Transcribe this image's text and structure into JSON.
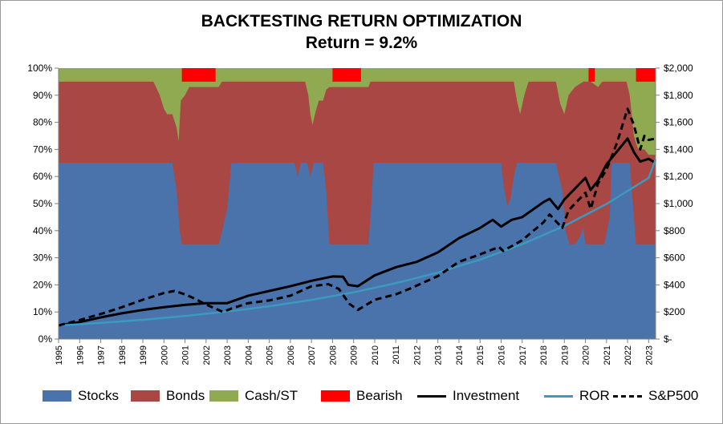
{
  "chart_data": {
    "type": "area",
    "title": "BACKTESTING RETURN OPTIMIZATION",
    "subtitle": "Return = 9.2%",
    "x": {
      "start": 1995.0,
      "end": 2023.33,
      "tick_labels": [
        "1995",
        "1996",
        "1997",
        "1998",
        "1999",
        "2000",
        "2001",
        "2002",
        "2003",
        "2004",
        "2005",
        "2006",
        "2007",
        "2008",
        "2009",
        "2010",
        "2011",
        "2012",
        "2013",
        "2014",
        "2015",
        "2016",
        "2017",
        "2018",
        "2019",
        "2020",
        "2021",
        "2022",
        "2023"
      ]
    },
    "y_left": {
      "range": [
        0,
        100
      ],
      "tick_labels": [
        "0%",
        "10%",
        "20%",
        "30%",
        "40%",
        "50%",
        "60%",
        "70%",
        "80%",
        "90%",
        "100%"
      ]
    },
    "y_right": {
      "range": [
        0,
        2000
      ],
      "tick_labels": [
        "$-",
        "$200",
        "$400",
        "$600",
        "$800",
        "$1,000",
        "$1,200",
        "$1,400",
        "$1,600",
        "$1,800",
        "$2,000"
      ]
    },
    "allocation_series": [
      {
        "name": "Stocks",
        "color": "#4a72ab",
        "points": [
          [
            1995,
            65
          ],
          [
            2000.4,
            65
          ],
          [
            2000.6,
            55
          ],
          [
            2000.75,
            40
          ],
          [
            2000.85,
            35
          ],
          [
            2002.6,
            35
          ],
          [
            2002.7,
            38
          ],
          [
            2003.0,
            48
          ],
          [
            2003.2,
            65
          ],
          [
            2006.2,
            65
          ],
          [
            2006.35,
            60
          ],
          [
            2006.5,
            65
          ],
          [
            2006.8,
            65
          ],
          [
            2006.95,
            60
          ],
          [
            2007.1,
            65
          ],
          [
            2007.55,
            65
          ],
          [
            2007.7,
            55
          ],
          [
            2007.85,
            35
          ],
          [
            2009.7,
            35
          ],
          [
            2009.8,
            45
          ],
          [
            2009.95,
            65
          ],
          [
            2016.0,
            65
          ],
          [
            2016.15,
            55
          ],
          [
            2016.3,
            49
          ],
          [
            2016.45,
            52
          ],
          [
            2016.6,
            60
          ],
          [
            2016.75,
            65
          ],
          [
            2018.6,
            65
          ],
          [
            2018.9,
            55
          ],
          [
            2019.05,
            40
          ],
          [
            2019.25,
            35
          ],
          [
            2019.5,
            35
          ],
          [
            2019.75,
            38
          ],
          [
            2019.9,
            41
          ],
          [
            2020.0,
            35
          ],
          [
            2020.25,
            35
          ],
          [
            2020.6,
            35
          ],
          [
            2020.9,
            35
          ],
          [
            2021.15,
            45
          ],
          [
            2021.25,
            65
          ],
          [
            2022.1,
            65
          ],
          [
            2022.25,
            50
          ],
          [
            2022.4,
            35
          ],
          [
            2023.33,
            35
          ]
        ]
      },
      {
        "name": "Bonds",
        "color": "#a94744",
        "points": [
          [
            1995,
            95
          ],
          [
            1999.5,
            95
          ],
          [
            1999.8,
            90
          ],
          [
            2000.0,
            85
          ],
          [
            2000.15,
            83
          ],
          [
            2000.4,
            83
          ],
          [
            2000.6,
            78
          ],
          [
            2000.7,
            73
          ],
          [
            2000.8,
            88
          ],
          [
            2001.0,
            90
          ],
          [
            2001.2,
            93
          ],
          [
            2002.6,
            93
          ],
          [
            2002.75,
            95
          ],
          [
            2006.7,
            95
          ],
          [
            2006.85,
            90
          ],
          [
            2006.95,
            83
          ],
          [
            2007.05,
            79
          ],
          [
            2007.2,
            84
          ],
          [
            2007.35,
            88
          ],
          [
            2007.55,
            88
          ],
          [
            2007.7,
            92
          ],
          [
            2007.85,
            93
          ],
          [
            2009.7,
            93
          ],
          [
            2009.8,
            95
          ],
          [
            2016.6,
            95
          ],
          [
            2016.75,
            88
          ],
          [
            2016.9,
            83
          ],
          [
            2017.1,
            90
          ],
          [
            2017.3,
            95
          ],
          [
            2018.6,
            95
          ],
          [
            2018.8,
            87
          ],
          [
            2019.0,
            83
          ],
          [
            2019.2,
            90
          ],
          [
            2019.5,
            93
          ],
          [
            2019.9,
            95
          ],
          [
            2020.25,
            95
          ],
          [
            2020.6,
            93
          ],
          [
            2020.8,
            95
          ],
          [
            2021.95,
            95
          ],
          [
            2022.1,
            90
          ],
          [
            2022.3,
            75
          ],
          [
            2022.5,
            70
          ],
          [
            2022.8,
            70
          ],
          [
            2023.0,
            68
          ],
          [
            2023.33,
            68
          ]
        ]
      },
      {
        "name": "Cash/ST",
        "color": "#8faa51",
        "points": [
          [
            1995,
            100
          ],
          [
            2023.33,
            100
          ]
        ]
      }
    ],
    "bearish_periods": [
      [
        2000.85,
        2002.45
      ],
      [
        2008.0,
        2009.35
      ],
      [
        2020.15,
        2020.45
      ],
      [
        2022.4,
        2023.33
      ]
    ],
    "bearish_color": "#ff0000",
    "line_series": [
      {
        "name": "Investment",
        "color": "#000000",
        "style": "solid",
        "points": [
          [
            1995,
            100
          ],
          [
            1996,
            125
          ],
          [
            1997,
            160
          ],
          [
            1998,
            190
          ],
          [
            1999,
            215
          ],
          [
            2000,
            235
          ],
          [
            2001,
            252
          ],
          [
            2002,
            265
          ],
          [
            2003,
            265
          ],
          [
            2004,
            320
          ],
          [
            2005,
            355
          ],
          [
            2006,
            390
          ],
          [
            2007,
            430
          ],
          [
            2008,
            462
          ],
          [
            2008.5,
            460
          ],
          [
            2008.75,
            400
          ],
          [
            2009.2,
            390
          ],
          [
            2010,
            470
          ],
          [
            2011,
            530
          ],
          [
            2012,
            570
          ],
          [
            2013,
            640
          ],
          [
            2014,
            745
          ],
          [
            2015,
            820
          ],
          [
            2015.6,
            880
          ],
          [
            2016,
            830
          ],
          [
            2016.5,
            880
          ],
          [
            2017,
            900
          ],
          [
            2018,
            1010
          ],
          [
            2018.3,
            1035
          ],
          [
            2018.7,
            960
          ],
          [
            2019,
            1030
          ],
          [
            2020,
            1190
          ],
          [
            2020.25,
            1100
          ],
          [
            2020.6,
            1170
          ],
          [
            2021,
            1290
          ],
          [
            2022,
            1480
          ],
          [
            2022.3,
            1380
          ],
          [
            2022.6,
            1310
          ],
          [
            2023,
            1330
          ],
          [
            2023.33,
            1300
          ]
        ]
      },
      {
        "name": "ROR",
        "color": "#3b9abf",
        "style": "solid",
        "points": [
          [
            1995,
            100
          ],
          [
            1997,
            119
          ],
          [
            1999,
            142
          ],
          [
            2001,
            170
          ],
          [
            2003,
            203
          ],
          [
            2005,
            242
          ],
          [
            2007,
            289
          ],
          [
            2009,
            345
          ],
          [
            2011,
            412
          ],
          [
            2013,
            491
          ],
          [
            2015,
            586
          ],
          [
            2017,
            700
          ],
          [
            2019,
            835
          ],
          [
            2021,
            997
          ],
          [
            2023,
            1190
          ],
          [
            2023.33,
            1325
          ]
        ]
      },
      {
        "name": "S&P500",
        "color": "#000000",
        "style": "dashed",
        "points": [
          [
            1995,
            100
          ],
          [
            1996,
            140
          ],
          [
            1997,
            185
          ],
          [
            1998,
            235
          ],
          [
            1999,
            290
          ],
          [
            2000,
            340
          ],
          [
            2000.5,
            355
          ],
          [
            2001,
            330
          ],
          [
            2001.5,
            295
          ],
          [
            2002,
            255
          ],
          [
            2002.8,
            200
          ],
          [
            2003.2,
            225
          ],
          [
            2004,
            265
          ],
          [
            2005,
            285
          ],
          [
            2006,
            320
          ],
          [
            2007,
            390
          ],
          [
            2007.8,
            405
          ],
          [
            2008.3,
            370
          ],
          [
            2008.8,
            260
          ],
          [
            2009.2,
            215
          ],
          [
            2010,
            290
          ],
          [
            2011,
            330
          ],
          [
            2011.8,
            380
          ],
          [
            2012,
            395
          ],
          [
            2013,
            465
          ],
          [
            2014,
            570
          ],
          [
            2015,
            625
          ],
          [
            2015.9,
            680
          ],
          [
            2016.1,
            650
          ],
          [
            2017,
            730
          ],
          [
            2018,
            860
          ],
          [
            2018.3,
            920
          ],
          [
            2018.9,
            820
          ],
          [
            2019.2,
            950
          ],
          [
            2020,
            1080
          ],
          [
            2020.25,
            960
          ],
          [
            2020.6,
            1150
          ],
          [
            2021,
            1250
          ],
          [
            2021.5,
            1450
          ],
          [
            2022,
            1700
          ],
          [
            2022.3,
            1580
          ],
          [
            2022.6,
            1400
          ],
          [
            2022.8,
            1500
          ],
          [
            2023,
            1470
          ],
          [
            2023.33,
            1480
          ]
        ]
      }
    ],
    "legend": {
      "position": "bottom",
      "items": [
        {
          "label": "Stocks",
          "kind": "area",
          "color": "#4a72ab"
        },
        {
          "label": "Bonds",
          "kind": "area",
          "color": "#a94744"
        },
        {
          "label": "Cash/ST",
          "kind": "area",
          "color": "#8faa51"
        },
        {
          "label": "Bearish",
          "kind": "area",
          "color": "#ff0000"
        },
        {
          "label": "Investment",
          "kind": "line",
          "color": "#000000",
          "style": "solid"
        },
        {
          "label": "ROR",
          "kind": "line",
          "color": "#3b9abf",
          "style": "solid"
        },
        {
          "label": "S&P500",
          "kind": "line",
          "color": "#000000",
          "style": "dashed"
        }
      ]
    },
    "grid": false
  }
}
